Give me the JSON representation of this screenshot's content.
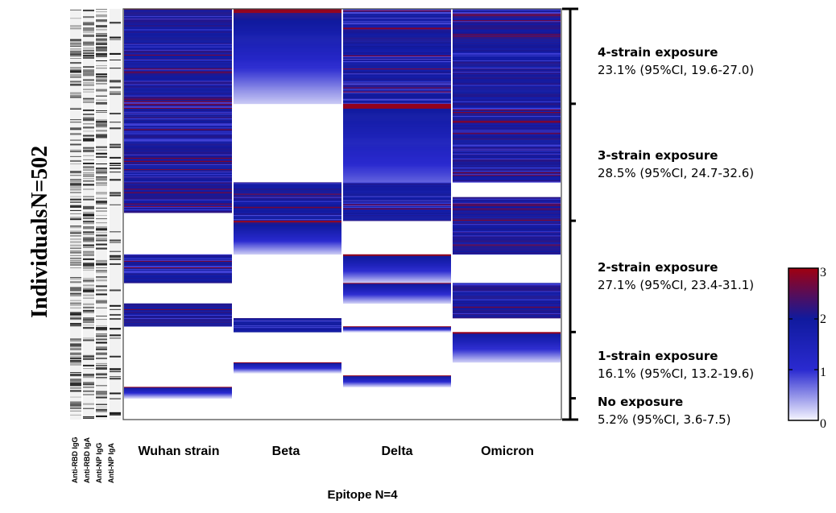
{
  "chart_data": {
    "type": "heatmap",
    "n_rows": 502,
    "ylabel_lines": [
      "Individuals",
      "N=502"
    ],
    "xlabel": "Epitope N=4",
    "columns": [
      "Wuhan strain",
      "Beta",
      "Delta",
      "Omicron"
    ],
    "annotation_columns": [
      "Anti-RBD IgG",
      "Anti-RBD IgA",
      "Anti-NP IgG",
      "Anti-NP IgA"
    ],
    "colorbar": {
      "min": 0,
      "max": 3,
      "ticks": [
        "0",
        "1",
        "2",
        "3"
      ],
      "colors": [
        "#f6f6ff",
        "#2a2ad0",
        "#101a9e",
        "#a00010"
      ]
    },
    "groups": [
      {
        "title": "4-strain exposure",
        "stat": "23.1% (95%CI, 19.6-27.0)",
        "row_start": 0,
        "row_end": 116
      },
      {
        "title": "3-strain exposure",
        "stat": "28.5% (95%CI, 24.7-32.6)",
        "row_start": 116,
        "row_end": 259
      },
      {
        "title": "2-strain exposure",
        "stat": "27.1% (95%CI, 23.4-31.1)",
        "row_start": 259,
        "row_end": 395
      },
      {
        "title": "1-strain exposure",
        "stat": "16.1% (95%CI, 13.2-19.6)",
        "row_start": 395,
        "row_end": 476
      },
      {
        "title": "No exposure",
        "stat": "5.2% (95%CI, 3.6-7.5)",
        "row_start": 476,
        "row_end": 502
      }
    ],
    "blocks": [
      {
        "column": "Wuhan strain",
        "row_start": 0,
        "row_end": 116,
        "pattern": "striped",
        "level": 2.0
      },
      {
        "column": "Beta",
        "row_start": 0,
        "row_end": 116,
        "pattern": "gradient",
        "level": 2.2
      },
      {
        "column": "Delta",
        "row_start": 0,
        "row_end": 116,
        "pattern": "striped",
        "level": 1.9
      },
      {
        "column": "Omicron",
        "row_start": 0,
        "row_end": 116,
        "pattern": "striped",
        "level": 2.0
      },
      {
        "column": "Wuhan strain",
        "row_start": 116,
        "row_end": 249,
        "pattern": "striped",
        "level": 2.0
      },
      {
        "column": "Delta",
        "row_start": 116,
        "row_end": 249,
        "pattern": "gradient",
        "level": 2.0
      },
      {
        "column": "Omicron",
        "row_start": 116,
        "row_end": 212,
        "pattern": "striped",
        "level": 2.0
      },
      {
        "column": "Wuhan strain",
        "row_start": 212,
        "row_end": 249,
        "pattern": "striped",
        "level": 2.0
      },
      {
        "column": "Beta",
        "row_start": 212,
        "row_end": 249,
        "pattern": "striped",
        "level": 2.0
      },
      {
        "column": "Delta",
        "row_start": 212,
        "row_end": 249,
        "pattern": "striped",
        "level": 1.9
      },
      {
        "column": "Beta",
        "row_start": 249,
        "row_end": 259,
        "pattern": "striped",
        "level": 1.9
      },
      {
        "column": "Delta",
        "row_start": 249,
        "row_end": 259,
        "pattern": "striped",
        "level": 1.9
      },
      {
        "column": "Omicron",
        "row_start": 230,
        "row_end": 259,
        "pattern": "striped",
        "level": 2.0
      },
      {
        "column": "Beta",
        "row_start": 259,
        "row_end": 300,
        "pattern": "gradient",
        "level": 2.2
      },
      {
        "column": "Omicron",
        "row_start": 259,
        "row_end": 300,
        "pattern": "striped",
        "level": 2.0
      },
      {
        "column": "Wuhan strain",
        "row_start": 300,
        "row_end": 335,
        "pattern": "striped",
        "level": 2.0
      },
      {
        "column": "Delta",
        "row_start": 300,
        "row_end": 335,
        "pattern": "gradient",
        "level": 2.1
      },
      {
        "column": "Delta",
        "row_start": 335,
        "row_end": 360,
        "pattern": "gradient",
        "level": 2.0
      },
      {
        "column": "Omicron",
        "row_start": 335,
        "row_end": 378,
        "pattern": "striped",
        "level": 2.0
      },
      {
        "column": "Wuhan strain",
        "row_start": 360,
        "row_end": 388,
        "pattern": "striped",
        "level": 2.0
      },
      {
        "column": "Beta",
        "row_start": 378,
        "row_end": 395,
        "pattern": "striped",
        "level": 1.9
      },
      {
        "column": "Delta",
        "row_start": 388,
        "row_end": 395,
        "pattern": "gradient",
        "level": 2.0
      },
      {
        "column": "Omicron",
        "row_start": 395,
        "row_end": 432,
        "pattern": "gradient",
        "level": 2.0
      },
      {
        "column": "Beta",
        "row_start": 432,
        "row_end": 445,
        "pattern": "gradient",
        "level": 2.0
      },
      {
        "column": "Delta",
        "row_start": 448,
        "row_end": 462,
        "pattern": "gradient",
        "level": 2.0
      },
      {
        "column": "Wuhan strain",
        "row_start": 462,
        "row_end": 476,
        "pattern": "gradient",
        "level": 1.9
      }
    ]
  }
}
